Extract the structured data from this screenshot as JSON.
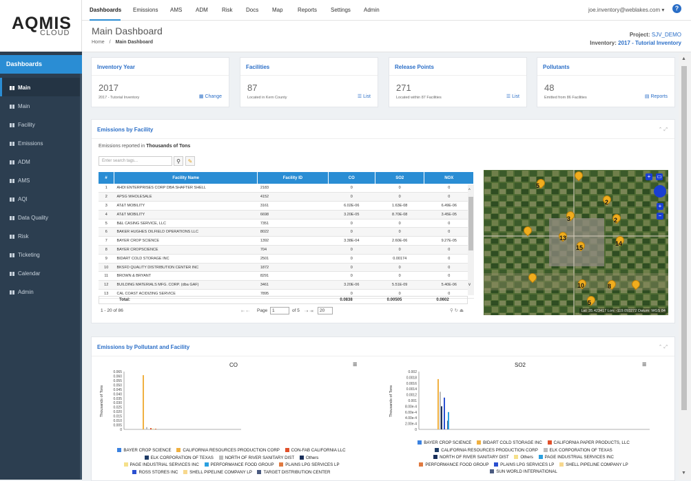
{
  "brand": {
    "name": "AQMIS",
    "sub": "CLOUD"
  },
  "nav": [
    "Dashboards",
    "Emissions",
    "AMS",
    "ADM",
    "Risk",
    "Docs",
    "Map",
    "Reports",
    "Settings",
    "Admin"
  ],
  "user": "joe.inventory@weblakes.com ▾",
  "help": "?",
  "sidebar": {
    "header": "Dashboards",
    "items": [
      "Main",
      "Main",
      "Facility",
      "Emissions",
      "ADM",
      "AMS",
      "AQI",
      "Data Quality",
      "Risk",
      "Ticketing",
      "Calendar",
      "Admin"
    ]
  },
  "page": {
    "title": "Main Dashboard",
    "crumb_home": "Home",
    "crumb_current": "Main Dashboard",
    "project_label": "Project:",
    "project": "SJV_DEMO",
    "inventory_label": "Inventory:",
    "inventory": "2017 - Tutorial Inventory"
  },
  "cards": [
    {
      "title": "Inventory Year",
      "value": "2017",
      "sub": "2017 - Tutorial Inventory",
      "action": "Change"
    },
    {
      "title": "Facilities",
      "value": "87",
      "sub": "Located in Kern County",
      "action": "List"
    },
    {
      "title": "Release Points",
      "value": "271",
      "sub": "Located within 87 Facilities",
      "action": "List"
    },
    {
      "title": "Pollutants",
      "value": "48",
      "sub": "Emitted from 86 Facilities",
      "action": "Reports"
    }
  ],
  "facility_panel": {
    "title": "Emissions by Facility",
    "note_prefix": "Emissions reported in",
    "note_unit": "Thousands of Tons",
    "search_placeholder": "Enter search tags..."
  },
  "table": {
    "headers": [
      "#",
      "Facility Name",
      "Facility ID",
      "CO",
      "SO2",
      "NOX"
    ],
    "rows": [
      [
        "1",
        "AHDI ENTERPRISES CORP DBA SHAFTER SHELL",
        "2183",
        "0",
        "0",
        "0"
      ],
      [
        "2",
        "APSG WHOLESALE",
        "4152",
        "0",
        "0",
        "0"
      ],
      [
        "3",
        "AT&T MOBILITY",
        "3161",
        "6.02E-06",
        "1.63E-08",
        "6.49E-06"
      ],
      [
        "4",
        "AT&T MOBILITY",
        "6698",
        "3.20E-05",
        "8.70E-08",
        "3.45E-05"
      ],
      [
        "5",
        "B&L CASING SERVICE, LLC",
        "7351",
        "0",
        "0",
        "0"
      ],
      [
        "6",
        "BAKER HUGHES OILFIELD OPERATIONS LLC",
        "8022",
        "0",
        "0",
        "0"
      ],
      [
        "7",
        "BAYER CROP SCIENCE",
        "1392",
        "3.38E-04",
        "2.60E-06",
        "9.27E-05"
      ],
      [
        "8",
        "BAYER CROPSCIENCE",
        "704",
        "0",
        "0",
        "0"
      ],
      [
        "9",
        "BIDART COLD STORAGE INC",
        "2501",
        "0",
        "0.00174",
        "0"
      ],
      [
        "10",
        "BKSFD QUALITY DISTRIBUTION CENTER INC",
        "1872",
        "0",
        "0",
        "0"
      ],
      [
        "11",
        "BROWN & BRYANT",
        "8291",
        "0",
        "0",
        "0"
      ],
      [
        "12",
        "BUILDING MATERIALS MFG. CORP. (dba GAF)",
        "3461",
        "3.20E-06",
        "5.51E-09",
        "5.40E-06"
      ],
      [
        "13",
        "CAL COAST ACIDIZING SERVICE",
        "7895",
        "0",
        "0",
        "0"
      ]
    ],
    "total_label": "Total:",
    "totals": [
      "0.0838",
      "0.00505",
      "0.0602"
    ]
  },
  "pager": {
    "range": "1 - 20 of 86",
    "page_label": "Page",
    "page": "1",
    "of": "of 5",
    "per_page": "20"
  },
  "map": {
    "coords": "Lat: 35.423417  Lon: -119.093272  Datum: WGS 84",
    "clusters": [
      "5",
      "2",
      "3",
      "2",
      "13",
      "15",
      "14",
      "10",
      "8",
      "5"
    ]
  },
  "pollutant_panel": {
    "title": "Emissions by Pollutant and Facility"
  },
  "charts": [
    {
      "title": "CO",
      "ylabel": "Thousands of Tons",
      "yticks": [
        "0.065",
        "0.060",
        "0.055",
        "0.050",
        "0.045",
        "0.040",
        "0.035",
        "0.030",
        "0.025",
        "0.020",
        "0.015",
        "0.010",
        "0.005",
        "0"
      ],
      "legend": [
        [
          "BAYER CROP SCIENCE",
          "#3b82e0"
        ],
        [
          "CALIFORNIA RESOURCES PRODUCTION CORP",
          "#f0b040"
        ],
        [
          "CON-FAB CALIFORNIA LLC",
          "#e0502a"
        ],
        [
          "ELK CORPORATION OF TEXAS",
          "#1f3c66"
        ],
        [
          "NORTH OF RIVER SANITARY DIST",
          "#bbbbbb"
        ],
        [
          "Others",
          "#1a2f5a"
        ],
        [
          "PAGE INDUSTRIAL SERVICES INC",
          "#f5e08a"
        ],
        [
          "PERFORMANCE FOOD GROUP",
          "#2aa0e0"
        ],
        [
          "PLAINS LPG SERVICES LP",
          "#e07a40"
        ],
        [
          "ROSS STORES INC",
          "#2a4fd0"
        ],
        [
          "SHELL PIPELINE COMPANY LP",
          "#f7d88e"
        ],
        [
          "TARGET DISTRIBUTION CENTER",
          "#4a5a80"
        ]
      ]
    },
    {
      "title": "SO2",
      "ylabel": "Thousands of Tons",
      "yticks": [
        "0.002",
        "0.0018",
        "0.0016",
        "0.0014",
        "0.0012",
        "0.001",
        "8.00e-4",
        "6.00e-4",
        "4.00e-4",
        "2.00e-4",
        "0"
      ],
      "legend": [
        [
          "BAYER CROP SCIENCE",
          "#3b82e0"
        ],
        [
          "BIDART COLD STORAGE INC",
          "#f0b040"
        ],
        [
          "CALIFORNIA PAPER PRODUCTS, LLC",
          "#e0502a"
        ],
        [
          "CALIFORNIA RESOURCES PRODUCTION CORP",
          "#1f3c66"
        ],
        [
          "ELK CORPORATION OF TEXAS",
          "#bbbbbb"
        ],
        [
          "NORTH OF RIVER SANITARY DIST",
          "#1a2f5a"
        ],
        [
          "Others",
          "#f5e08a"
        ],
        [
          "PAGE INDUSTRIAL SERVICES INC",
          "#2aa0e0"
        ],
        [
          "PERFORMANCE FOOD GROUP",
          "#e07a40"
        ],
        [
          "PLAINS LPG SERVICES LP",
          "#2a4fd0"
        ],
        [
          "SHELL PIPELINE COMPANY LP",
          "#f7d88e"
        ],
        [
          "SUN WORLD INTERNATIONAL",
          "#4a5a80"
        ]
      ]
    }
  ],
  "chart_data": [
    {
      "type": "bar",
      "title": "CO",
      "ylabel": "Thousands of Tons",
      "ylim": [
        0,
        0.065
      ],
      "series": [
        {
          "name": "CALIFORNIA RESOURCES PRODUCTION CORP",
          "values": [
            0.061
          ]
        },
        {
          "name": "NORTH OF RIVER SANITARY DIST",
          "values": [
            0.0025
          ]
        },
        {
          "name": "CON-FAB CALIFORNIA LLC",
          "values": [
            0.0015
          ]
        },
        {
          "name": "PAGE INDUSTRIAL SERVICES INC",
          "values": [
            0.001
          ]
        },
        {
          "name": "PLAINS LPG SERVICES LP",
          "values": [
            0.0008
          ]
        }
      ]
    },
    {
      "type": "bar",
      "title": "SO2",
      "ylabel": "Thousands of Tons",
      "ylim": [
        0,
        0.002
      ],
      "series": [
        {
          "name": "BIDART COLD STORAGE INC",
          "values": [
            0.00174
          ]
        },
        {
          "name": "ELK CORPORATION OF TEXAS",
          "values": [
            0.0013
          ]
        },
        {
          "name": "NORTH OF RIVER SANITARY DIST",
          "values": [
            0.0008
          ]
        },
        {
          "name": "PLAINS LPG SERVICES LP",
          "values": [
            0.0011
          ]
        },
        {
          "name": "SUN WORLD INTERNATIONAL",
          "values": [
            0.0003
          ]
        },
        {
          "name": "PAGE INDUSTRIAL SERVICES INC",
          "values": [
            0.0006
          ]
        }
      ]
    }
  ]
}
